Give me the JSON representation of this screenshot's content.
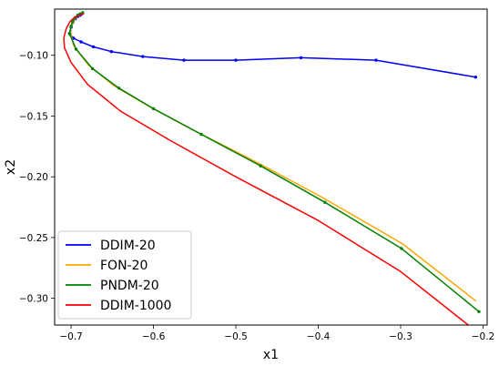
{
  "chart_data": {
    "type": "line",
    "title": "",
    "xlabel": "x1",
    "ylabel": "x2",
    "xlim": [
      -0.72,
      -0.195
    ],
    "ylim": [
      -0.322,
      -0.062
    ],
    "xticks": [
      -0.7,
      -0.6,
      -0.5,
      -0.4,
      -0.3,
      -0.2
    ],
    "xtick_labels": [
      "−0.7",
      "−0.6",
      "−0.5",
      "−0.4",
      "−0.3",
      "−0.2"
    ],
    "yticks": [
      -0.1,
      -0.15,
      -0.2,
      -0.25,
      -0.3
    ],
    "ytick_labels": [
      "−0.10",
      "−0.15",
      "−0.20",
      "−0.25",
      "−0.30"
    ],
    "grid": false,
    "legend_position": "bottom-left",
    "series": [
      {
        "name": "DDIM-20",
        "color": "#0000ff",
        "markers": true,
        "x": [
          -0.209,
          -0.33,
          -0.421,
          -0.5,
          -0.563,
          -0.613,
          -0.651,
          -0.673,
          -0.688,
          -0.697,
          -0.701,
          -0.7,
          -0.698,
          -0.695,
          -0.692,
          -0.689,
          -0.687
        ],
        "y": [
          -0.118,
          -0.104,
          -0.102,
          -0.104,
          -0.104,
          -0.101,
          -0.097,
          -0.093,
          -0.089,
          -0.086,
          -0.083,
          -0.077,
          -0.073,
          -0.07,
          -0.068,
          -0.067,
          -0.066
        ]
      },
      {
        "name": "FON-20",
        "color": "#ffa500",
        "markers": false,
        "x": [
          -0.209,
          -0.298,
          -0.395,
          -0.472,
          -0.545,
          -0.603,
          -0.648,
          -0.679,
          -0.697,
          -0.701,
          -0.699,
          -0.696,
          -0.693,
          -0.69,
          -0.688,
          -0.685
        ],
        "y": [
          -0.302,
          -0.255,
          -0.217,
          -0.189,
          -0.164,
          -0.143,
          -0.125,
          -0.108,
          -0.092,
          -0.08,
          -0.075,
          -0.071,
          -0.068,
          -0.067,
          -0.066,
          -0.065
        ]
      },
      {
        "name": "PNDM-20",
        "color": "#008000",
        "markers": true,
        "x": [
          -0.205,
          -0.299,
          -0.392,
          -0.47,
          -0.542,
          -0.6,
          -0.642,
          -0.674,
          -0.694,
          -0.702,
          -0.7,
          -0.698,
          -0.695,
          -0.692,
          -0.689,
          -0.686
        ],
        "y": [
          -0.311,
          -0.259,
          -0.221,
          -0.191,
          -0.165,
          -0.144,
          -0.127,
          -0.111,
          -0.095,
          -0.082,
          -0.076,
          -0.072,
          -0.069,
          -0.067,
          -0.066,
          -0.065
        ]
      },
      {
        "name": "DDIM-1000",
        "color": "#ff0000",
        "markers": false,
        "x": [
          -0.218,
          -0.3,
          -0.4,
          -0.5,
          -0.58,
          -0.64,
          -0.68,
          -0.7,
          -0.708,
          -0.709,
          -0.706,
          -0.701,
          -0.696,
          -0.69,
          -0.685
        ],
        "y": [
          -0.322,
          -0.278,
          -0.236,
          -0.2,
          -0.17,
          -0.146,
          -0.124,
          -0.106,
          -0.094,
          -0.086,
          -0.078,
          -0.072,
          -0.069,
          -0.067,
          -0.066
        ]
      }
    ]
  }
}
